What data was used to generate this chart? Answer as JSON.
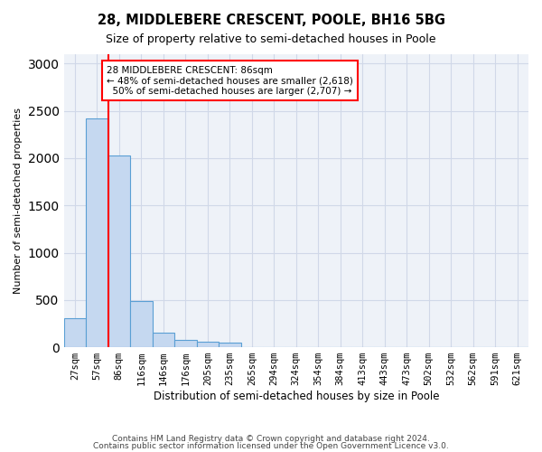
{
  "title": "28, MIDDLEBERE CRESCENT, POOLE, BH16 5BG",
  "subtitle": "Size of property relative to semi-detached houses in Poole",
  "xlabel": "Distribution of semi-detached houses by size in Poole",
  "ylabel": "Number of semi-detached properties",
  "footer_line1": "Contains HM Land Registry data © Crown copyright and database right 2024.",
  "footer_line2": "Contains public sector information licensed under the Open Government Licence v3.0.",
  "property_label": "28 MIDDLEBERE CRESCENT: 86sqm",
  "smaller_pct": "48%",
  "smaller_count": "2,618",
  "larger_pct": "50%",
  "larger_count": "2,707",
  "bin_labels": [
    "27sqm",
    "57sqm",
    "86sqm",
    "116sqm",
    "146sqm",
    "176sqm",
    "205sqm",
    "235sqm",
    "265sqm",
    "294sqm",
    "324sqm",
    "354sqm",
    "384sqm",
    "413sqm",
    "443sqm",
    "473sqm",
    "502sqm",
    "532sqm",
    "562sqm",
    "591sqm",
    "621sqm"
  ],
  "bar_heights": [
    310,
    2420,
    2030,
    490,
    155,
    80,
    60,
    45,
    0,
    0,
    0,
    0,
    0,
    0,
    0,
    0,
    0,
    0,
    0,
    0,
    0
  ],
  "bar_color": "#c5d8f0",
  "bar_edge_color": "#5a9fd4",
  "red_line_x": 1.5,
  "ylim": [
    0,
    3100
  ],
  "yticks": [
    0,
    500,
    1000,
    1500,
    2000,
    2500,
    3000
  ],
  "annotation_box_color": "white",
  "annotation_box_edge_color": "red",
  "grid_color": "#d0d8e8",
  "bg_color": "#eef2f8"
}
